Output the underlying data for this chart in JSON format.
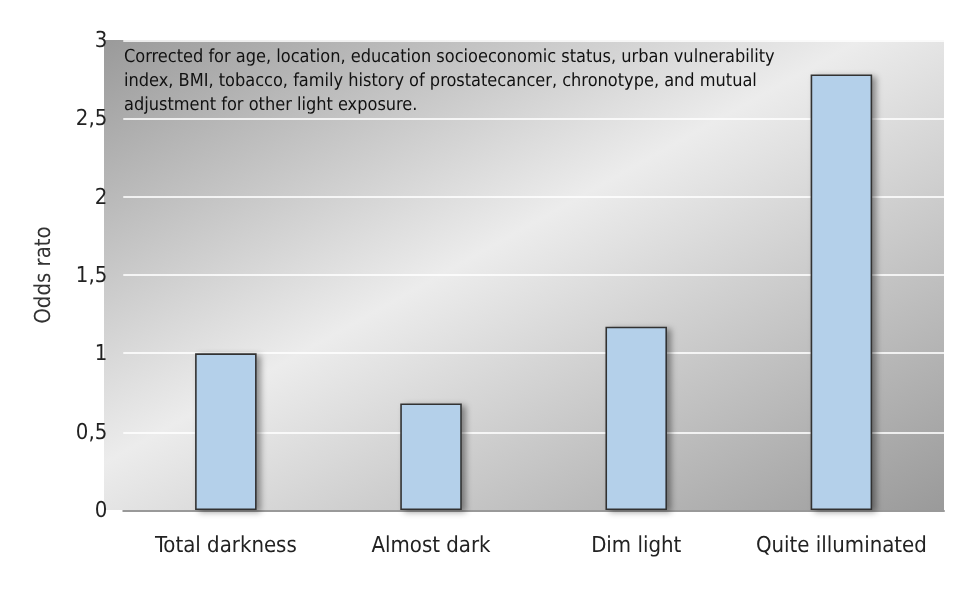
{
  "chart_data": {
    "type": "bar",
    "ylabel": "Odds rato",
    "categories": [
      "Total darkness",
      "Almost dark",
      "Dim light",
      "Quite illuminated"
    ],
    "values": [
      1.0,
      0.68,
      1.17,
      2.78
    ],
    "color": "#b4d0ea",
    "ylim": [
      0,
      3
    ],
    "yticks": [
      0,
      {
        "value": 0.5,
        "label": "0,5"
      },
      1,
      {
        "value": 1.5,
        "label": "1,5"
      },
      2,
      {
        "value": 2.5,
        "label": "2,5"
      },
      3
    ],
    "grid": "y",
    "annotations": [
      "Corrected for age, location, education socioeconomic status, urban vulnerability index, BMI, tobacco, family history of prostatecancer, chronotype, and mutual adjustment for other light exposure."
    ]
  }
}
